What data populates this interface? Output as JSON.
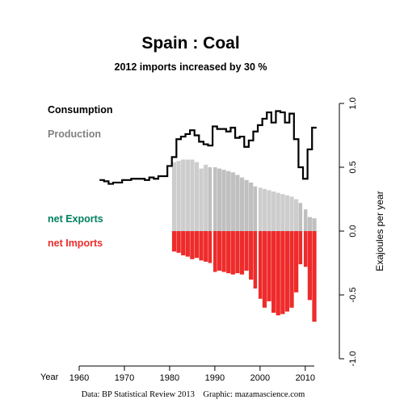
{
  "chart_data": {
    "type": "area",
    "title": "Spain :  Coal",
    "subtitle": "2012 imports increased by 30 %",
    "ylabel": "Exajoules per year",
    "xlabel": "Year",
    "credit": "Data: BP Statistical Review 2013    Graphic: mazamascience.com",
    "xlim": [
      1960,
      2012
    ],
    "ylim": [
      -1.0,
      1.0
    ],
    "x_ticks": [
      1960,
      1970,
      1980,
      1990,
      2000,
      2010
    ],
    "y_ticks": [
      -1.0,
      -0.5,
      0.0,
      0.5,
      1.0
    ],
    "y_tick_labels": [
      "-1.0",
      "-0.5",
      "0.0",
      "0.5",
      "1.0"
    ],
    "legend": [
      {
        "label": "Consumption",
        "color": "#000000"
      },
      {
        "label": "Production",
        "color": "#808080"
      },
      {
        "label": "net Exports",
        "color": "#008060"
      },
      {
        "label": "net Imports",
        "color": "#ee2b2b"
      }
    ],
    "series": [
      {
        "name": "Consumption",
        "years": [
          1965,
          1966,
          1967,
          1968,
          1969,
          1970,
          1971,
          1972,
          1973,
          1974,
          1975,
          1976,
          1977,
          1978,
          1979,
          1980,
          1981,
          1982,
          1983,
          1984,
          1985,
          1986,
          1987,
          1988,
          1989,
          1990,
          1991,
          1992,
          1993,
          1994,
          1995,
          1996,
          1997,
          1998,
          1999,
          2000,
          2001,
          2002,
          2003,
          2004,
          2005,
          2006,
          2007,
          2008,
          2009,
          2010,
          2011,
          2012
        ],
        "values": [
          0.4,
          0.39,
          0.37,
          0.38,
          0.38,
          0.4,
          0.4,
          0.41,
          0.41,
          0.41,
          0.4,
          0.42,
          0.41,
          0.43,
          0.43,
          0.51,
          0.58,
          0.72,
          0.74,
          0.76,
          0.79,
          0.75,
          0.7,
          0.68,
          0.67,
          0.82,
          0.8,
          0.8,
          0.78,
          0.81,
          0.73,
          0.74,
          0.66,
          0.71,
          0.78,
          0.83,
          0.88,
          0.93,
          0.85,
          0.94,
          0.93,
          0.85,
          0.92,
          0.72,
          0.5,
          0.41,
          0.64,
          0.81
        ]
      },
      {
        "name": "Production",
        "years": [
          1981,
          1982,
          1983,
          1984,
          1985,
          1986,
          1987,
          1988,
          1989,
          1990,
          1991,
          1992,
          1993,
          1994,
          1995,
          1996,
          1997,
          1998,
          1999,
          2000,
          2001,
          2002,
          2003,
          2004,
          2005,
          2006,
          2007,
          2008,
          2009,
          2010,
          2011,
          2012
        ],
        "values": [
          0.54,
          0.55,
          0.56,
          0.56,
          0.56,
          0.54,
          0.49,
          0.52,
          0.5,
          0.5,
          0.49,
          0.48,
          0.47,
          0.46,
          0.44,
          0.42,
          0.4,
          0.38,
          0.35,
          0.34,
          0.33,
          0.32,
          0.31,
          0.3,
          0.29,
          0.28,
          0.27,
          0.25,
          0.22,
          0.17,
          0.11,
          0.1
        ]
      },
      {
        "name": "net Imports",
        "years": [
          1981,
          1982,
          1983,
          1984,
          1985,
          1986,
          1987,
          1988,
          1989,
          1990,
          1991,
          1992,
          1993,
          1994,
          1995,
          1996,
          1997,
          1998,
          1999,
          2000,
          2001,
          2002,
          2003,
          2004,
          2005,
          2006,
          2007,
          2008,
          2009,
          2010,
          2011,
          2012
        ],
        "values": [
          0.16,
          0.17,
          0.19,
          0.2,
          0.22,
          0.21,
          0.23,
          0.24,
          0.25,
          0.32,
          0.31,
          0.32,
          0.33,
          0.34,
          0.33,
          0.34,
          0.31,
          0.38,
          0.45,
          0.53,
          0.6,
          0.55,
          0.64,
          0.66,
          0.65,
          0.63,
          0.6,
          0.48,
          0.26,
          0.28,
          0.54,
          0.71
        ]
      }
    ],
    "net_exports": "none shown"
  }
}
